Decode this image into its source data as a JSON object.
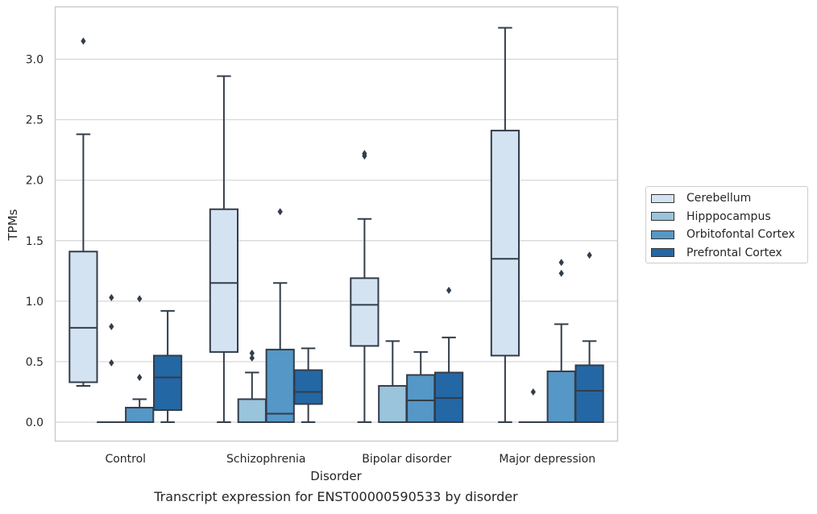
{
  "chart_data": {
    "type": "box",
    "title": "Transcript expression for ENST00000590533 by disorder",
    "xlabel": "Disorder",
    "ylabel": "TPMs",
    "ylim": [
      -0.16,
      3.43
    ],
    "yticks": [
      "0.0",
      "0.5",
      "1.0",
      "1.5",
      "2.0",
      "2.5",
      "3.0"
    ],
    "grid": "horizontal",
    "legend_position": "right",
    "categories": [
      "Control",
      "Schizophrenia",
      "Bipolar disorder",
      "Major depression"
    ],
    "series": [
      {
        "name": "Cerebellum",
        "color": "#d4e3f2",
        "boxes": [
          {
            "whisker_low": 0.3,
            "q1": 0.33,
            "median": 0.78,
            "q3": 1.41,
            "whisker_high": 2.38,
            "outliers": [
              3.15
            ]
          },
          {
            "whisker_low": 0.0,
            "q1": 0.58,
            "median": 1.15,
            "q3": 1.76,
            "whisker_high": 2.86,
            "outliers": []
          },
          {
            "whisker_low": 0.0,
            "q1": 0.63,
            "median": 0.97,
            "q3": 1.19,
            "whisker_high": 1.68,
            "outliers": [
              2.2,
              2.22
            ]
          },
          {
            "whisker_low": 0.0,
            "q1": 0.55,
            "median": 1.35,
            "q3": 2.41,
            "whisker_high": 3.26,
            "outliers": []
          }
        ]
      },
      {
        "name": "Hipppocampus",
        "color": "#9ac3dc",
        "boxes": [
          {
            "whisker_low": 0.0,
            "q1": 0.0,
            "median": 0.0,
            "q3": 0.0,
            "whisker_high": 0.0,
            "outliers": [
              0.49,
              0.79,
              1.03
            ]
          },
          {
            "whisker_low": 0.0,
            "q1": 0.0,
            "median": 0.0,
            "q3": 0.19,
            "whisker_high": 0.41,
            "outliers": [
              0.53,
              0.57
            ]
          },
          {
            "whisker_low": 0.0,
            "q1": 0.0,
            "median": 0.0,
            "q3": 0.3,
            "whisker_high": 0.67,
            "outliers": []
          },
          {
            "whisker_low": 0.0,
            "q1": 0.0,
            "median": 0.0,
            "q3": 0.0,
            "whisker_high": 0.0,
            "outliers": [
              0.25
            ]
          }
        ]
      },
      {
        "name": "Orbitofontal Cortex",
        "color": "#5597c6",
        "boxes": [
          {
            "whisker_low": 0.0,
            "q1": 0.0,
            "median": 0.0,
            "q3": 0.12,
            "whisker_high": 0.19,
            "outliers": [
              0.37,
              1.02
            ]
          },
          {
            "whisker_low": 0.0,
            "q1": 0.0,
            "median": 0.07,
            "q3": 0.6,
            "whisker_high": 1.15,
            "outliers": [
              1.74
            ]
          },
          {
            "whisker_low": 0.0,
            "q1": 0.0,
            "median": 0.18,
            "q3": 0.39,
            "whisker_high": 0.58,
            "outliers": []
          },
          {
            "whisker_low": 0.0,
            "q1": 0.0,
            "median": 0.0,
            "q3": 0.42,
            "whisker_high": 0.81,
            "outliers": [
              1.23,
              1.32
            ]
          }
        ]
      },
      {
        "name": "Prefrontal Cortex",
        "color": "#2467a5",
        "boxes": [
          {
            "whisker_low": 0.0,
            "q1": 0.1,
            "median": 0.37,
            "q3": 0.55,
            "whisker_high": 0.92,
            "outliers": []
          },
          {
            "whisker_low": 0.0,
            "q1": 0.15,
            "median": 0.25,
            "q3": 0.43,
            "whisker_high": 0.61,
            "outliers": []
          },
          {
            "whisker_low": 0.0,
            "q1": 0.0,
            "median": 0.2,
            "q3": 0.41,
            "whisker_high": 0.7,
            "outliers": [
              1.09
            ]
          },
          {
            "whisker_low": 0.0,
            "q1": 0.0,
            "median": 0.26,
            "q3": 0.47,
            "whisker_high": 0.67,
            "outliers": [
              1.38
            ]
          }
        ]
      }
    ]
  }
}
